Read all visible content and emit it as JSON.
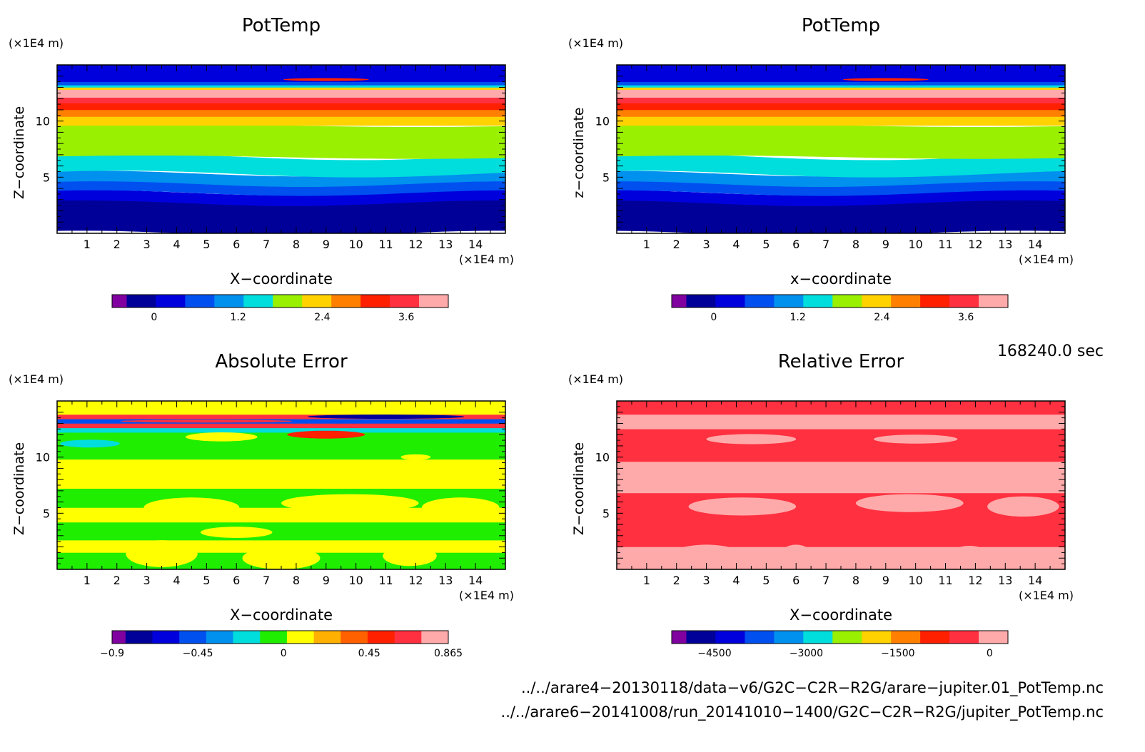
{
  "chart_data": [
    {
      "type": "heatmap",
      "title": "PotTemp",
      "xlabel": "X−coordinate",
      "ylabel": "Z−coordinate",
      "x_unit": "(×1E4 m)",
      "y_unit": "(×1E4 m)",
      "xlim": [
        0,
        15
      ],
      "ylim": [
        0,
        15
      ],
      "x_ticks": [
        1,
        2,
        3,
        4,
        5,
        6,
        7,
        8,
        9,
        10,
        11,
        12,
        13,
        14
      ],
      "y_ticks": [
        5,
        10
      ],
      "colorbar_ticks": [
        "0",
        "1.2",
        "2.4",
        "3.6"
      ],
      "colorbar_range": [
        -0.6,
        4.2
      ]
    },
    {
      "type": "heatmap",
      "title": "PotTemp",
      "xlabel": "x−coordinate",
      "ylabel": "z−coordinate",
      "x_unit": "(×1E4 m)",
      "y_unit": "(×1E4 m)",
      "xlim": [
        0,
        15
      ],
      "ylim": [
        0,
        15
      ],
      "x_ticks": [
        1,
        2,
        3,
        4,
        5,
        6,
        7,
        8,
        9,
        10,
        11,
        12,
        13,
        14
      ],
      "y_ticks": [
        5,
        10
      ],
      "colorbar_ticks": [
        "0",
        "1.2",
        "2.4",
        "3.6"
      ],
      "colorbar_range": [
        -0.6,
        4.2
      ]
    },
    {
      "type": "heatmap",
      "title": "Absolute Error",
      "xlabel": "X−coordinate",
      "ylabel": "Z−coordinate",
      "x_unit": "(×1E4 m)",
      "y_unit": "(×1E4 m)",
      "xlim": [
        0,
        15
      ],
      "ylim": [
        0,
        15
      ],
      "x_ticks": [
        1,
        2,
        3,
        4,
        5,
        6,
        7,
        8,
        9,
        10,
        11,
        12,
        13,
        14
      ],
      "y_ticks": [
        5,
        10
      ],
      "colorbar_ticks": [
        "−0.9",
        "−0.45",
        "0",
        "0.45",
        "0.865"
      ],
      "colorbar_range": [
        -0.9,
        0.865
      ]
    },
    {
      "type": "heatmap",
      "title": "Relative Error",
      "xlabel": "X−coordinate",
      "ylabel": "Z−coordinate",
      "x_unit": "(×1E4 m)",
      "y_unit": "(×1E4 m)",
      "xlim": [
        0,
        15
      ],
      "ylim": [
        0,
        15
      ],
      "x_ticks": [
        1,
        2,
        3,
        4,
        5,
        6,
        7,
        8,
        9,
        10,
        11,
        12,
        13,
        14
      ],
      "y_ticks": [
        5,
        10
      ],
      "colorbar_ticks": [
        "−4500",
        "−3000",
        "−1500",
        "0"
      ],
      "colorbar_range": [
        -5200,
        300
      ]
    }
  ],
  "time_label": "168240.0 sec",
  "file_paths": [
    "../../arare4−20130118/data−v6/G2C−C2R−R2G/arare−jupiter.01_PotTemp.nc",
    "../../arare6−20141008/run_20141010−1400/G2C−C2R−R2G/jupiter_PotTemp.nc"
  ],
  "colors": {
    "pottemp_scale": [
      "#8000a0",
      "#000099",
      "#0000dd",
      "#0050f0",
      "#0090ee",
      "#00dddd",
      "#99f000",
      "#ffd200",
      "#ff8000",
      "#ff2000",
      "#ff3040",
      "#ffaaaa"
    ],
    "abs_error_scale": [
      "#8000a0",
      "#000099",
      "#0000dd",
      "#0050f0",
      "#0090ee",
      "#00dddd",
      "#20ee00",
      "#ffff00",
      "#ffb000",
      "#ff6000",
      "#ff2000",
      "#ff3040",
      "#ffaaaa"
    ],
    "rel_error_scale": [
      "#8000a0",
      "#000099",
      "#0000dd",
      "#0050f0",
      "#0090ee",
      "#00dddd",
      "#99f000",
      "#ffd200",
      "#ff8000",
      "#ff2000",
      "#ff3040",
      "#ffaaaa"
    ]
  }
}
